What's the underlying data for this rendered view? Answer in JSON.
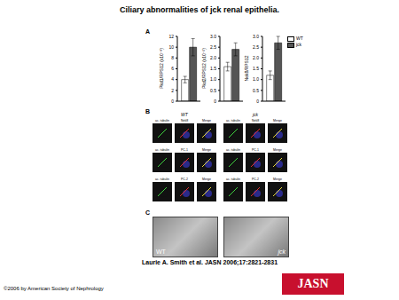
{
  "title": "Ciliary abnormalities of jck renal epithelia.",
  "chart_data": [
    {
      "type": "bar",
      "y_label": "Pkd1/RPS12 (x10⁻³)",
      "categories": [
        null
      ],
      "series": [
        {
          "name": "WT",
          "color": "#ffffff",
          "values": [
            4
          ],
          "errors": [
            0.6
          ]
        },
        {
          "name": "jck",
          "color": "#555555",
          "values": [
            10
          ],
          "errors": [
            1.6
          ]
        }
      ],
      "ylim": [
        0,
        12
      ],
      "yticks": [
        0,
        2,
        4,
        6,
        8,
        10,
        12
      ],
      "tick_labels": "y"
    },
    {
      "type": "bar",
      "y_label": "Pkd2/RPS12 (x10⁻²)",
      "categories": [
        null
      ],
      "series": [
        {
          "name": "WT",
          "color": "#ffffff",
          "values": [
            1.6
          ],
          "errors": [
            0.2
          ]
        },
        {
          "name": "jck",
          "color": "#555555",
          "values": [
            2.4
          ],
          "errors": [
            0.3
          ]
        }
      ],
      "ylim": [
        0,
        3
      ],
      "yticks": [
        0,
        0.5,
        {
          "value": 1,
          "label": "1.0"
        },
        1.5,
        {
          "value": 2,
          "label": "2.0"
        },
        2.5,
        {
          "value": 3,
          "label": "3.0"
        }
      ],
      "tick_labels": "y"
    },
    {
      "type": "bar",
      "y_label": "Nek8/RPS12",
      "categories": [
        null
      ],
      "series": [
        {
          "name": "WT",
          "color": "#ffffff",
          "values": [
            1.2
          ],
          "errors": [
            0.2
          ]
        },
        {
          "name": "jck",
          "color": "#555555",
          "values": [
            2.7
          ],
          "errors": [
            0.3
          ]
        }
      ],
      "ylim": [
        0,
        3
      ],
      "yticks": [
        0,
        0.5,
        {
          "value": 1,
          "label": "1.0"
        },
        1.5,
        {
          "value": 2,
          "label": "2.0"
        },
        2.5,
        {
          "value": 3,
          "label": "3.0"
        }
      ],
      "tick_labels": "y",
      "legend": "top-right"
    }
  ],
  "panel_a": {
    "label": "A"
  },
  "panel_b": {
    "label": "B",
    "columns": [
      "WT",
      "jck"
    ],
    "rows": [
      [
        "ac. tubulin",
        "Nek8",
        "Merge"
      ],
      [
        "ac. tubulin",
        "PC-1",
        "Merge"
      ],
      [
        "ac. tubulin",
        "PC-2",
        "Merge"
      ]
    ]
  },
  "panel_c": {
    "label": "C",
    "images": [
      "WT",
      "jck"
    ]
  },
  "citation": "Laurie A. Smith et al. JASN 2006;17:2821-2831",
  "copyright": "©2006 by American Society of Nephrology",
  "logo": "JASN"
}
